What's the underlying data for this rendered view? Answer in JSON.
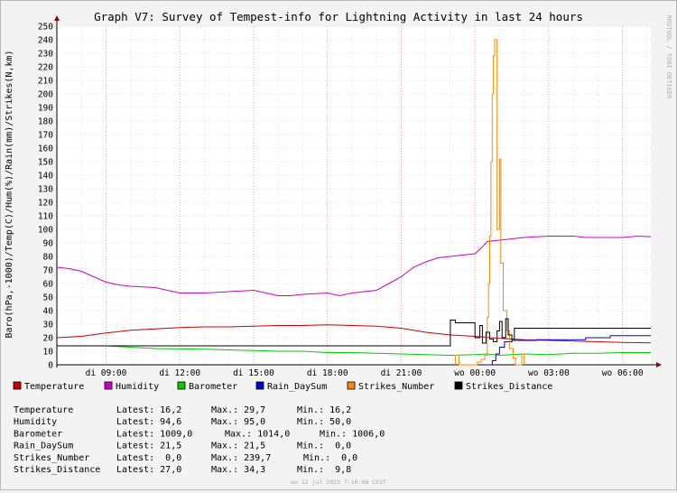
{
  "chart_data": {
    "type": "line",
    "title": "Graph V7: Survey of Tempest-info for Lightning Activity in last 24 hours",
    "ylabel": "Baro(hPa,-1000)/Temp(C)/Hum(%)/Rain(mm)/Strikes(N,km)",
    "xlabel": "",
    "ylim": [
      0,
      250
    ],
    "xlim": [
      7,
      31.15
    ],
    "grid": true,
    "watermark": "RRDTOOL / TOBI OETIKER",
    "footer": "wo 12 jul 2023  7:10:08 CEST",
    "yticks": [
      0,
      10,
      20,
      30,
      40,
      50,
      60,
      70,
      80,
      90,
      100,
      110,
      120,
      130,
      140,
      150,
      160,
      170,
      180,
      190,
      200,
      210,
      220,
      230,
      240,
      250
    ],
    "xticks": [
      {
        "x": 9,
        "label": "di 09:00"
      },
      {
        "x": 12,
        "label": "di 12:00"
      },
      {
        "x": 15,
        "label": "di 15:00"
      },
      {
        "x": 18,
        "label": "di 18:00"
      },
      {
        "x": 21,
        "label": "di 21:00"
      },
      {
        "x": 24,
        "label": "wo 00:00"
      },
      {
        "x": 27,
        "label": "wo 03:00"
      },
      {
        "x": 30,
        "label": "wo 06:00"
      }
    ],
    "series": [
      {
        "name": "Temperature",
        "color": "#cc0000",
        "points": [
          [
            7,
            20
          ],
          [
            8,
            21
          ],
          [
            9,
            23.5
          ],
          [
            10,
            25.5
          ],
          [
            11,
            26.5
          ],
          [
            12,
            27.5
          ],
          [
            13,
            28
          ],
          [
            14,
            28
          ],
          [
            15,
            28.5
          ],
          [
            16,
            29
          ],
          [
            17,
            29
          ],
          [
            18,
            29.5
          ],
          [
            19,
            29
          ],
          [
            20,
            28.5
          ],
          [
            21,
            27
          ],
          [
            22,
            24
          ],
          [
            23,
            22
          ],
          [
            24,
            21
          ],
          [
            25,
            19.5
          ],
          [
            26,
            18.5
          ],
          [
            27,
            18
          ],
          [
            28,
            17.5
          ],
          [
            29,
            17
          ],
          [
            30,
            16.5
          ],
          [
            31.15,
            16.2
          ]
        ]
      },
      {
        "name": "Humidity",
        "color": "#cc00cc",
        "points": [
          [
            7,
            72
          ],
          [
            7.5,
            71
          ],
          [
            8,
            69
          ],
          [
            8.5,
            65
          ],
          [
            9,
            61
          ],
          [
            9.5,
            59
          ],
          [
            10,
            58
          ],
          [
            11,
            57
          ],
          [
            11.5,
            55
          ],
          [
            12,
            53
          ],
          [
            13,
            53
          ],
          [
            14,
            54
          ],
          [
            15,
            55
          ],
          [
            15.5,
            53
          ],
          [
            16,
            51
          ],
          [
            16.5,
            51
          ],
          [
            17,
            52
          ],
          [
            18,
            53
          ],
          [
            18.5,
            51
          ],
          [
            19,
            53
          ],
          [
            20,
            55
          ],
          [
            20.5,
            60
          ],
          [
            21,
            65
          ],
          [
            21.5,
            72
          ],
          [
            22,
            76
          ],
          [
            22.5,
            79
          ],
          [
            23,
            80
          ],
          [
            24,
            82
          ],
          [
            24.3,
            87
          ],
          [
            24.5,
            91
          ],
          [
            25,
            92
          ],
          [
            26,
            94
          ],
          [
            27,
            95
          ],
          [
            28,
            95
          ],
          [
            28.5,
            94
          ],
          [
            29,
            94
          ],
          [
            30,
            94
          ],
          [
            30.6,
            95
          ],
          [
            31.15,
            94.6
          ]
        ]
      },
      {
        "name": "Barometer",
        "color": "#00cc00",
        "points": [
          [
            7,
            14
          ],
          [
            9,
            14
          ],
          [
            10,
            13
          ],
          [
            11,
            12
          ],
          [
            13,
            11.5
          ],
          [
            14,
            11
          ],
          [
            15,
            10.5
          ],
          [
            16,
            10
          ],
          [
            17,
            10
          ],
          [
            18,
            9
          ],
          [
            19,
            9
          ],
          [
            20,
            8.5
          ],
          [
            21,
            8
          ],
          [
            22,
            7.5
          ],
          [
            23,
            7
          ],
          [
            24,
            7.5
          ],
          [
            24.5,
            8
          ],
          [
            25,
            7
          ],
          [
            25.5,
            7.5
          ],
          [
            26,
            8
          ],
          [
            27,
            7.5
          ],
          [
            28,
            8.5
          ],
          [
            29,
            8.5
          ],
          [
            30,
            9
          ],
          [
            31.15,
            9
          ]
        ]
      },
      {
        "name": "Rain_DaySum",
        "color": "#0000cc",
        "points": [
          [
            24.35,
            0
          ],
          [
            24.7,
            0
          ],
          [
            24.7,
            3
          ],
          [
            24.85,
            3
          ],
          [
            24.85,
            8
          ],
          [
            25.0,
            8
          ],
          [
            25.0,
            13
          ],
          [
            25.2,
            13
          ],
          [
            25.2,
            17
          ],
          [
            25.5,
            17
          ],
          [
            25.5,
            18
          ],
          [
            26.5,
            18
          ],
          [
            26.5,
            18.5
          ],
          [
            28.5,
            18.5
          ],
          [
            28.5,
            20
          ],
          [
            29.5,
            20
          ],
          [
            29.5,
            21.5
          ],
          [
            31.15,
            21.5
          ]
        ]
      },
      {
        "name": "Strikes_Number",
        "color": "#ff8800",
        "points": [
          [
            23.2,
            0
          ],
          [
            23.2,
            7
          ],
          [
            23.35,
            7
          ],
          [
            23.35,
            0
          ],
          [
            24.1,
            0
          ],
          [
            24.1,
            2
          ],
          [
            24.25,
            2
          ],
          [
            24.25,
            4
          ],
          [
            24.4,
            4
          ],
          [
            24.4,
            7
          ],
          [
            24.5,
            7
          ],
          [
            24.5,
            35
          ],
          [
            24.55,
            35
          ],
          [
            24.55,
            60
          ],
          [
            24.6,
            60
          ],
          [
            24.6,
            95
          ],
          [
            24.65,
            95
          ],
          [
            24.65,
            150
          ],
          [
            24.7,
            150
          ],
          [
            24.7,
            200
          ],
          [
            24.75,
            200
          ],
          [
            24.75,
            228
          ],
          [
            24.8,
            228
          ],
          [
            24.8,
            240
          ],
          [
            24.9,
            240
          ],
          [
            24.9,
            100
          ],
          [
            25.0,
            100
          ],
          [
            25.0,
            152
          ],
          [
            25.05,
            152
          ],
          [
            25.05,
            75
          ],
          [
            25.15,
            75
          ],
          [
            25.15,
            40
          ],
          [
            25.3,
            40
          ],
          [
            25.3,
            25
          ],
          [
            25.4,
            25
          ],
          [
            25.4,
            12
          ],
          [
            25.55,
            12
          ],
          [
            25.55,
            5
          ],
          [
            25.65,
            5
          ],
          [
            25.65,
            0
          ],
          [
            25.9,
            0
          ],
          [
            25.9,
            8
          ],
          [
            26.0,
            8
          ],
          [
            26.0,
            0
          ]
        ]
      },
      {
        "name": "Strikes_Distance",
        "color": "#000000",
        "points": [
          [
            7,
            14
          ],
          [
            23,
            14
          ],
          [
            23,
            33
          ],
          [
            23.2,
            33
          ],
          [
            23.2,
            31
          ],
          [
            24,
            31
          ],
          [
            24,
            20
          ],
          [
            24.2,
            20
          ],
          [
            24.2,
            29
          ],
          [
            24.3,
            29
          ],
          [
            24.3,
            16
          ],
          [
            24.45,
            16
          ],
          [
            24.45,
            24
          ],
          [
            24.6,
            24
          ],
          [
            24.6,
            19
          ],
          [
            24.75,
            19
          ],
          [
            24.75,
            17
          ],
          [
            24.9,
            17
          ],
          [
            24.9,
            25
          ],
          [
            25.0,
            25
          ],
          [
            25.0,
            32
          ],
          [
            25.1,
            32
          ],
          [
            25.1,
            20
          ],
          [
            25.25,
            20
          ],
          [
            25.25,
            34
          ],
          [
            25.35,
            34
          ],
          [
            25.35,
            22
          ],
          [
            25.5,
            22
          ],
          [
            25.5,
            18
          ],
          [
            25.6,
            18
          ],
          [
            25.6,
            27
          ],
          [
            31.15,
            27
          ]
        ]
      }
    ]
  },
  "legend": [
    {
      "label": "Temperature",
      "color": "#cc0000"
    },
    {
      "label": "Humidity",
      "color": "#cc00cc"
    },
    {
      "label": "Barometer",
      "color": "#00cc00"
    },
    {
      "label": "Rain_DaySum",
      "color": "#0000cc"
    },
    {
      "label": "Strikes_Number",
      "color": "#ff8800"
    },
    {
      "label": "Strikes_Distance",
      "color": "#000000"
    }
  ],
  "stats": [
    {
      "name": "Temperature",
      "latest": "Latest: 16,2",
      "max": "Max.: 29,7",
      "min": "Min.: 16,2"
    },
    {
      "name": "Humidity",
      "latest": "Latest: 94,6",
      "max": "Max.: 95,0",
      "min": "Min.: 50,0"
    },
    {
      "name": "Barometer",
      "latest": "Latest: 1009,0",
      "max": "Max.: 1014,0",
      "min": "Min.: 1006,0"
    },
    {
      "name": "Rain_DaySum",
      "latest": "Latest: 21,5",
      "max": "Max.: 21,5",
      "min": "Min.:  0,0"
    },
    {
      "name": "Strikes_Number",
      "latest": "Latest:  0,0",
      "max": "Max.: 239,7",
      "min": "Min.:  0,0"
    },
    {
      "name": "Strikes_Distance",
      "latest": "Latest: 27,0",
      "max": "Max.: 34,3",
      "min": "Min.:  9,8"
    }
  ]
}
